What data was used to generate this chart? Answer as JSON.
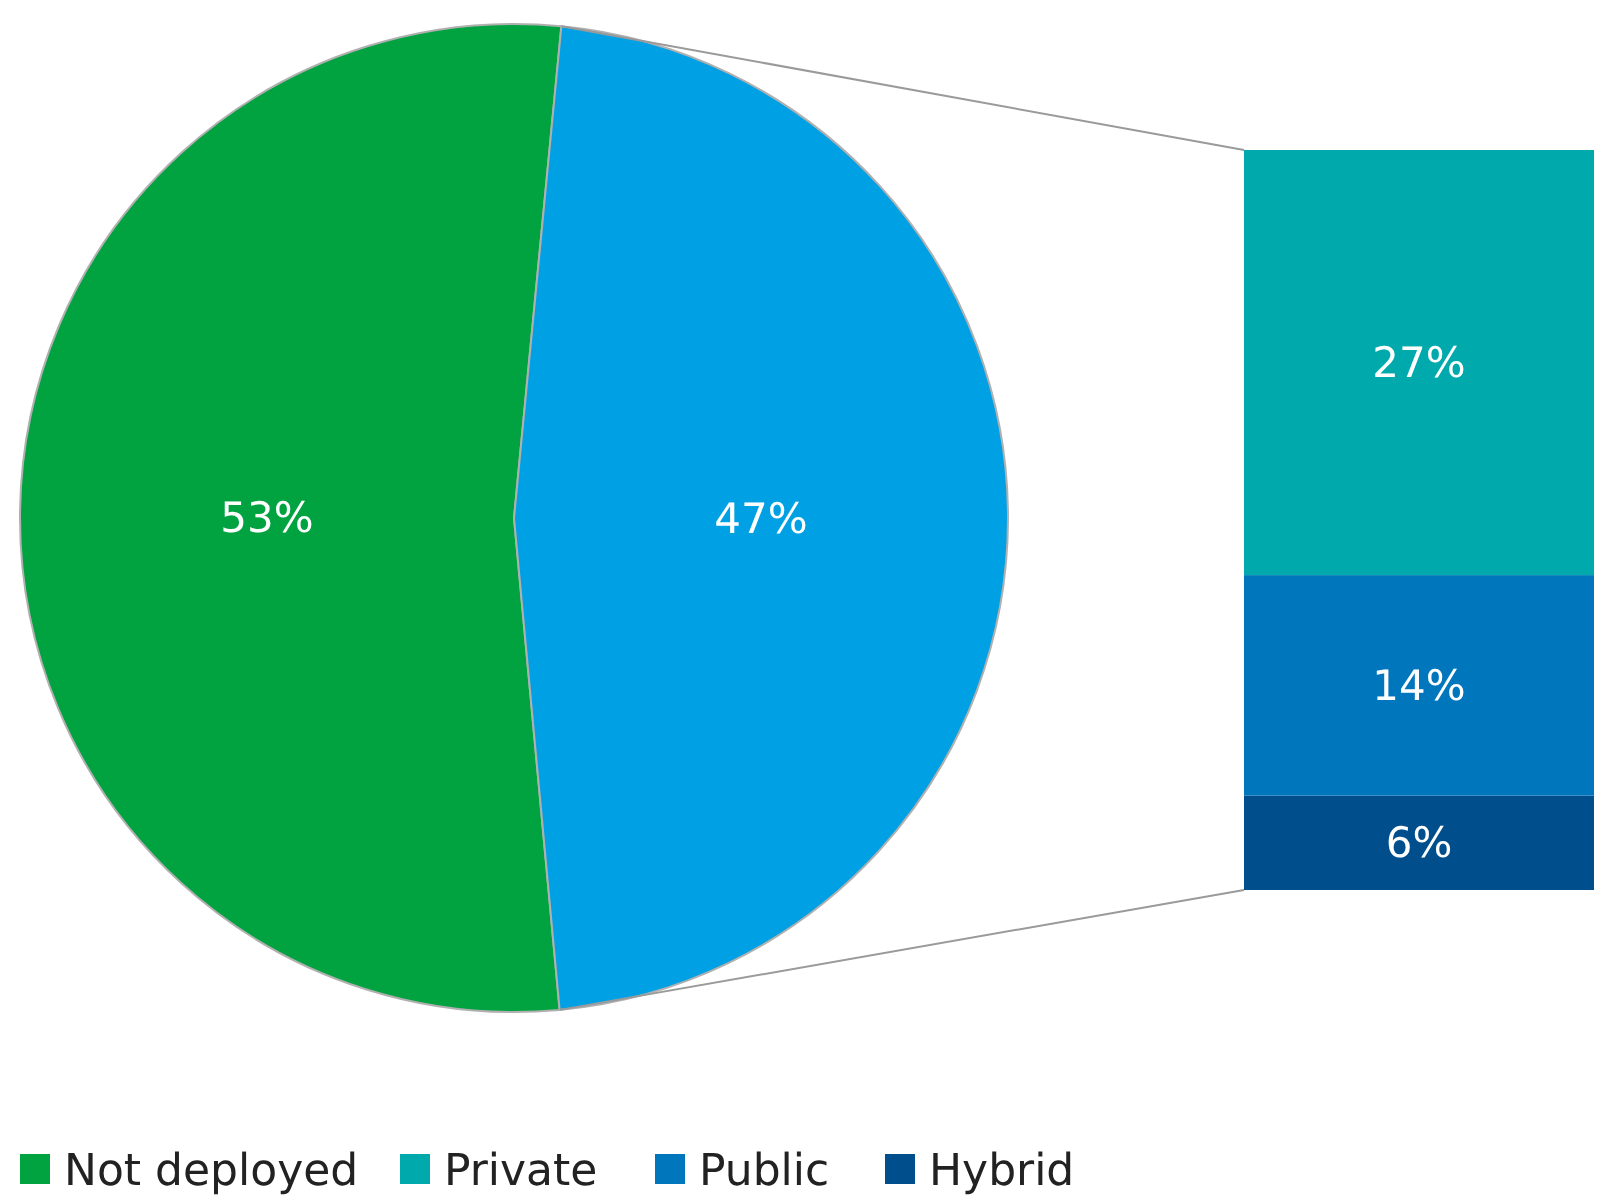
{
  "chart_data": [
    {
      "type": "pie",
      "categories": [
        "Not deployed",
        null
      ],
      "values": [
        53,
        47
      ],
      "value_labels": [
        "53%",
        "47%"
      ],
      "colors": [
        "#00a33f",
        "#00a1e4"
      ],
      "legend": "bottom"
    },
    {
      "type": "bar",
      "stacked": true,
      "categories": [
        null
      ],
      "legend": "bottom",
      "series": [
        {
          "name": "Hybrid",
          "color": "#004f8c",
          "values": [
            6
          ],
          "value_labels": [
            "6%"
          ]
        },
        {
          "name": "Public",
          "color": "#0076bd",
          "values": [
            14
          ],
          "value_labels": [
            "14%"
          ]
        },
        {
          "name": "Private",
          "color": "#00aaac",
          "values": [
            27
          ],
          "value_labels": [
            "27%"
          ]
        }
      ]
    }
  ]
}
